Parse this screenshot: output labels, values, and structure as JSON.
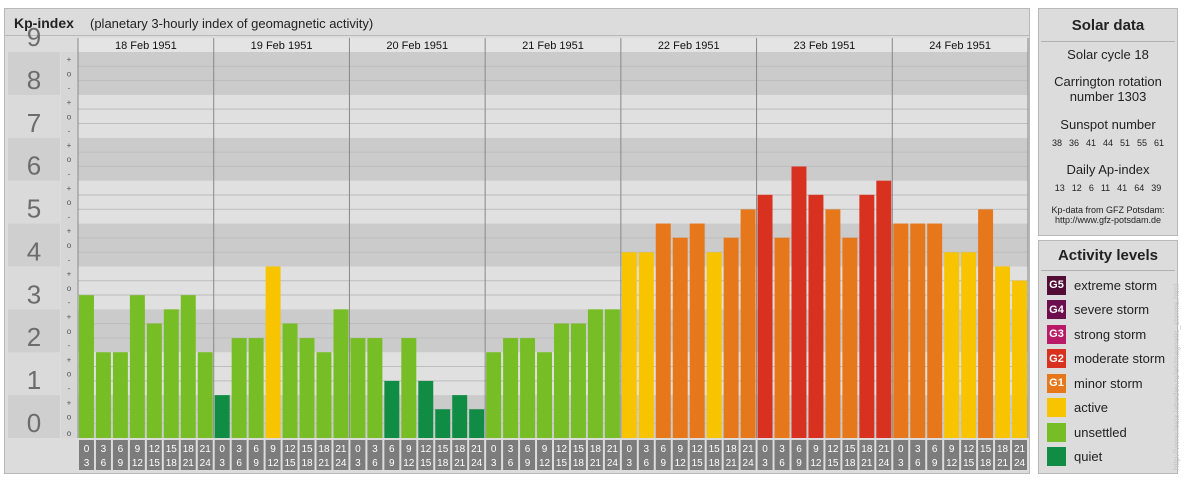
{
  "header": {
    "title": "Kp-index",
    "subtitle": "(planetary 3-hourly index of geomagnetic activity)"
  },
  "chart_data": {
    "type": "bar",
    "ylim": [
      0,
      9
    ],
    "y_ticks": [
      "0",
      "1",
      "2",
      "3",
      "4",
      "5",
      "6",
      "7",
      "8",
      "9"
    ],
    "sub_ticks": [
      "+",
      "o",
      "-"
    ],
    "days": [
      "18 Feb 1951",
      "19 Feb 1951",
      "20 Feb 1951",
      "21 Feb 1951",
      "22 Feb 1951",
      "23 Feb 1951",
      "24 Feb 1951"
    ],
    "interval_labels": [
      [
        "0",
        "3"
      ],
      [
        "3",
        "6"
      ],
      [
        "6",
        "9"
      ],
      [
        "9",
        "12"
      ],
      [
        "12",
        "15"
      ],
      [
        "15",
        "18"
      ],
      [
        "18",
        "21"
      ],
      [
        "21",
        "24"
      ]
    ],
    "values": [
      [
        3.33,
        2.0,
        2.0,
        3.33,
        2.67,
        3.0,
        3.33,
        2.0
      ],
      [
        1.0,
        2.33,
        2.33,
        4.0,
        2.67,
        2.33,
        2.0,
        3.0
      ],
      [
        2.33,
        2.33,
        1.33,
        2.33,
        1.33,
        0.67,
        1.0,
        0.67
      ],
      [
        2.0,
        2.33,
        2.33,
        2.0,
        2.67,
        2.67,
        3.0,
        3.0
      ],
      [
        4.33,
        4.33,
        5.0,
        4.67,
        5.0,
        4.33,
        4.67,
        5.33
      ],
      [
        5.67,
        4.67,
        6.33,
        5.67,
        5.33,
        4.67,
        5.67,
        6.0
      ],
      [
        5.0,
        5.0,
        5.0,
        4.33,
        4.33,
        5.33,
        4.0,
        3.67
      ]
    ],
    "levels": [
      {
        "label": "quiet",
        "min": 0,
        "max": 1.5,
        "color": "#118c45"
      },
      {
        "label": "unsettled",
        "min": 1.5,
        "max": 3.5,
        "color": "#77bd25"
      },
      {
        "label": "active",
        "min": 3.5,
        "max": 4.5,
        "color": "#f8c400"
      },
      {
        "label": "minor storm",
        "min": 4.5,
        "max": 5.5,
        "color": "#e6781b"
      },
      {
        "label": "moderate storm",
        "min": 5.5,
        "max": 6.5,
        "color": "#d93120"
      }
    ]
  },
  "solar": {
    "title": "Solar data",
    "cycle": "Solar cycle 18",
    "carrington_line1": "Carrington rotation",
    "carrington_line2": "number 1303",
    "sunspot_title": "Sunspot number",
    "sunspots": [
      "38",
      "36",
      "41",
      "44",
      "51",
      "55",
      "61"
    ],
    "ap_title": "Daily Ap-index",
    "ap": [
      "13",
      "12",
      "6",
      "11",
      "41",
      "64",
      "39"
    ],
    "source_line1": "Kp-data from GFZ Potsdam:",
    "source_line2": "http://www.gfz-potsdam.de"
  },
  "activity": {
    "title": "Activity levels",
    "items": [
      {
        "code": "G5",
        "label": "extreme storm",
        "color": "#520c36"
      },
      {
        "code": "G4",
        "label": "severe storm",
        "color": "#6d0e4e"
      },
      {
        "code": "G3",
        "label": "strong storm",
        "color": "#b81a65"
      },
      {
        "code": "G2",
        "label": "moderate storm",
        "color": "#d93120"
      },
      {
        "code": "G1",
        "label": "minor storm",
        "color": "#e6781b"
      },
      {
        "code": "",
        "label": "active",
        "color": "#f8c400"
      },
      {
        "code": "",
        "label": "unsettled",
        "color": "#77bd25"
      },
      {
        "code": "",
        "label": "quiet",
        "color": "#118c45"
      }
    ]
  },
  "watermark": "http://www.tesis.lebedev.ru/en/magnetic_storms.html"
}
